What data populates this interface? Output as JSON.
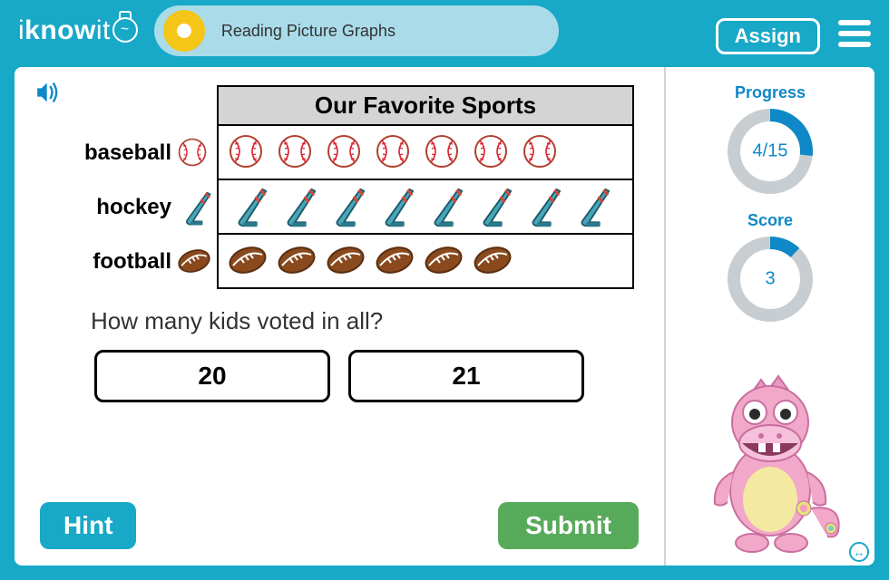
{
  "colors": {
    "brand": "#18a8c8",
    "header_pill": "#a9dbe9",
    "orb": "#f5c518",
    "accent_blue": "#0e88c7",
    "submit_green": "#58aa5b",
    "graph_title_bg": "#d4d4d4",
    "ring_track": "#c7cdd1"
  },
  "header": {
    "logo_text_1": "i",
    "logo_text_2": "know",
    "logo_text_3": "it",
    "title": "Reading Picture Graphs",
    "assign_label": "Assign"
  },
  "graph": {
    "title": "Our Favorite Sports",
    "rows": [
      {
        "label": "baseball",
        "icon": "baseball",
        "count": 7
      },
      {
        "label": "hockey",
        "icon": "hockey",
        "count": 8
      },
      {
        "label": "football",
        "icon": "football",
        "count": 6
      }
    ]
  },
  "question": {
    "text": "How many kids voted in all?",
    "answers": [
      "20",
      "21"
    ]
  },
  "buttons": {
    "hint": "Hint",
    "submit": "Submit"
  },
  "sidebar": {
    "progress": {
      "title": "Progress",
      "current": 4,
      "total": 15,
      "display": "4/15",
      "ring_stroke": 14,
      "ring_radius": 40
    },
    "score": {
      "title": "Score",
      "value": 3,
      "fraction": 0.12,
      "ring_stroke": 14,
      "ring_radius": 40
    }
  }
}
